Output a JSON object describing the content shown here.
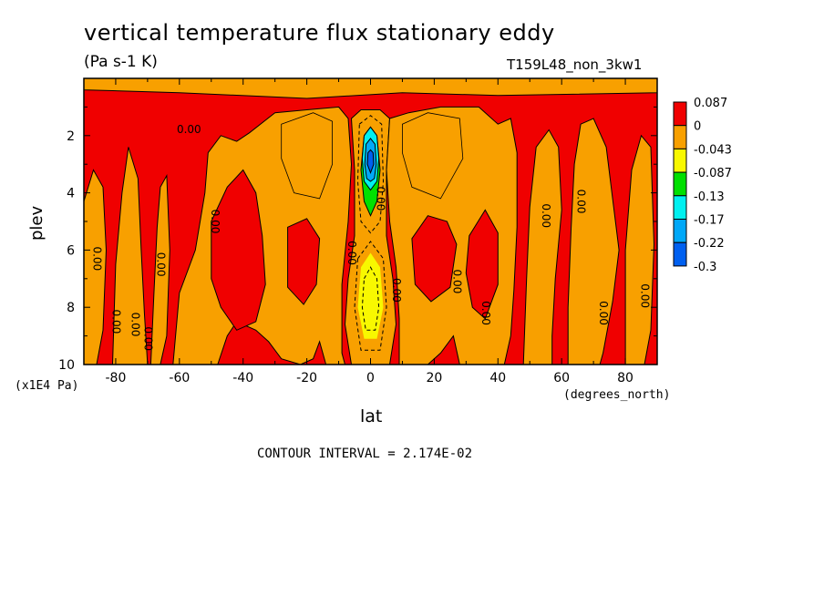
{
  "chart_data": {
    "type": "heatmap",
    "title": "vertical temperature flux stationary eddy",
    "units": "(Pa s-1 K)",
    "run_label": "T159L48_non_3kw1",
    "xlabel": "lat",
    "ylabel": "plev",
    "x_units": "(degrees_north)",
    "y_scale_label": "(x1E4 Pa)",
    "xlim": [
      -90,
      90
    ],
    "ylim": [
      0,
      10
    ],
    "y_inverted": true,
    "x_ticks": [
      -80,
      -60,
      -40,
      -20,
      0,
      20,
      40,
      60,
      80
    ],
    "x_tick_labels": [
      "-80",
      "-60",
      "-40",
      "-20",
      "0",
      "20",
      "40",
      "60",
      "80"
    ],
    "y_ticks": [
      2,
      4,
      6,
      8,
      10
    ],
    "y_tick_labels": [
      "2",
      "4",
      "6",
      "8",
      "10"
    ],
    "colorbar_levels": [
      "0.087",
      "0",
      "-0.043",
      "-0.087",
      "-0.13",
      "-0.17",
      "-0.22",
      "-0.3"
    ],
    "colorbar_colors": [
      "#f00000",
      "#f8a000",
      "#f8f800",
      "#00e000",
      "#00f0f0",
      "#00a8f8",
      "#0060f0"
    ],
    "contour_interval_text": "CONTOUR INTERVAL = 2.174E-02",
    "contour_label": "0.00",
    "contour_labels": [
      {
        "x": -57,
        "y": 1.8
      },
      {
        "x": -49,
        "y": 5.0
      },
      {
        "x": -86,
        "y": 6.3
      },
      {
        "x": -66,
        "y": 6.5
      },
      {
        "x": -80,
        "y": 8.5
      },
      {
        "x": -74,
        "y": 8.6
      },
      {
        "x": -70,
        "y": 9.1
      },
      {
        "x": -6,
        "y": 6.1
      },
      {
        "x": 3,
        "y": 4.2
      },
      {
        "x": 8,
        "y": 7.4
      },
      {
        "x": 27,
        "y": 7.1
      },
      {
        "x": 36,
        "y": 8.2
      },
      {
        "x": 55,
        "y": 4.8
      },
      {
        "x": 66,
        "y": 4.3
      },
      {
        "x": 73,
        "y": 8.2
      },
      {
        "x": 86,
        "y": 7.6
      }
    ],
    "colors": {
      "positive": "#f00000",
      "near_zero": "#f8a000",
      "weak_negative": "#f8f800",
      "negative": "#00e000",
      "strong_negative": "#00f0f0",
      "very_negative": "#00a8f8",
      "extreme": "#0060f0"
    }
  }
}
